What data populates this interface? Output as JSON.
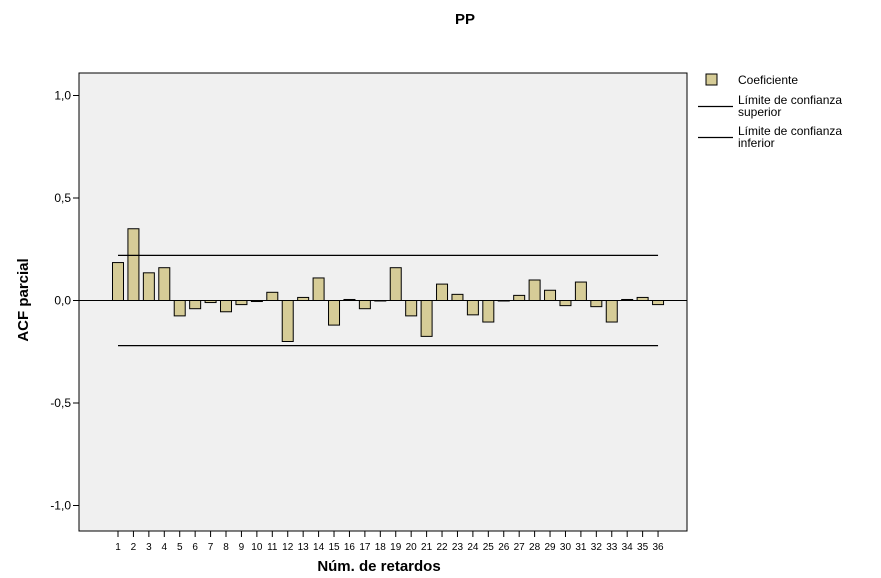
{
  "chart_data": {
    "type": "bar",
    "title": "PP",
    "xlabel": "Núm. de retardos",
    "ylabel": "ACF parcial",
    "ylim": [
      -1.1,
      1.1
    ],
    "yticks": [
      1.0,
      0.5,
      0.0,
      -0.5,
      -1.0
    ],
    "ytick_labels": [
      "1,0",
      "0,5",
      "0,0",
      "-0,5",
      "-1,0"
    ],
    "categories": [
      "1",
      "2",
      "3",
      "4",
      "5",
      "6",
      "7",
      "8",
      "9",
      "10",
      "11",
      "12",
      "13",
      "14",
      "15",
      "16",
      "17",
      "18",
      "19",
      "20",
      "21",
      "22",
      "23",
      "24",
      "25",
      "26",
      "27",
      "28",
      "29",
      "30",
      "31",
      "32",
      "33",
      "34",
      "35",
      "36"
    ],
    "values": [
      0.185,
      0.35,
      0.135,
      0.16,
      -0.075,
      -0.04,
      -0.01,
      -0.055,
      -0.02,
      -0.005,
      0.04,
      -0.2,
      0.015,
      0.11,
      -0.12,
      0.005,
      -0.04,
      0.0,
      0.16,
      -0.075,
      -0.175,
      0.08,
      0.03,
      -0.07,
      -0.105,
      0.0,
      0.025,
      0.1,
      0.05,
      -0.025,
      0.09,
      -0.03,
      -0.105,
      0.005,
      0.015,
      -0.02
    ],
    "upper_limit": 0.22,
    "lower_limit": -0.22,
    "grid": false,
    "legend_position": "top-right",
    "legend": [
      {
        "label": "Coeficiente",
        "kind": "bar"
      },
      {
        "label": "Límite de confianza superior",
        "lines": [
          "Límite de confianza",
          "superior"
        ],
        "kind": "line"
      },
      {
        "label": "Límite de confianza inferior",
        "lines": [
          "Límite de confianza",
          "inferior"
        ],
        "kind": "line"
      }
    ],
    "colors": {
      "bar_fill": "#d6cc97",
      "bar_stroke": "#000000",
      "plot_bg": "#f0f0f0",
      "limit_line": "#000000"
    }
  }
}
